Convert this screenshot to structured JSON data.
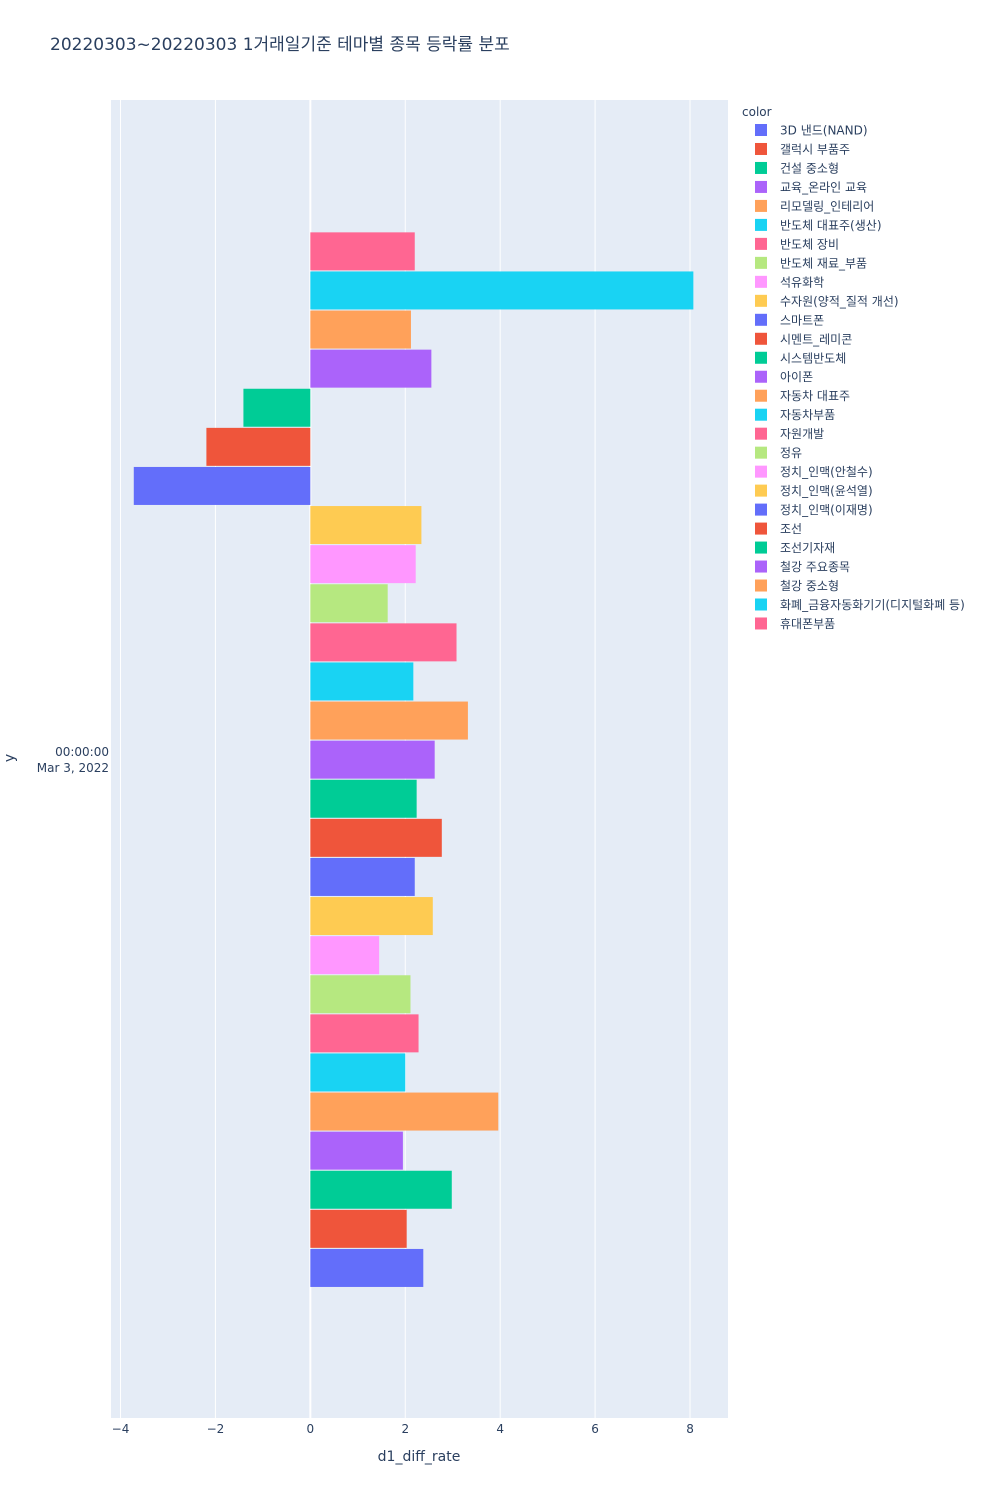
{
  "chart_data": {
    "type": "bar",
    "orientation": "horizontal",
    "title": "20220303~20220303 1거래일기준 테마별 종목 등락률 분포",
    "xlabel": "d1_diff_rate",
    "ylabel": "y",
    "y_category": [
      "00:00:00",
      "Mar 3, 2022"
    ],
    "xlim": [
      -4.2,
      8.8
    ],
    "xticks": [
      -4,
      -2,
      0,
      2,
      4,
      6,
      8
    ],
    "legend_title": "color",
    "legend_position": "right",
    "series": [
      {
        "name": "3D 낸드(NAND)",
        "value": 2.38,
        "color": "#636efa"
      },
      {
        "name": "갤럭시 부품주",
        "value": 2.03,
        "color": "#EF553B"
      },
      {
        "name": "건설 중소형",
        "value": 2.98,
        "color": "#00cc96"
      },
      {
        "name": "교육_온라인 교육",
        "value": 1.95,
        "color": "#ab63fa"
      },
      {
        "name": "리모델링_인테리어",
        "value": 3.96,
        "color": "#FFA15A"
      },
      {
        "name": "반도체 대표주(생산)",
        "value": 2.0,
        "color": "#19d3f3"
      },
      {
        "name": "반도체 장비",
        "value": 2.28,
        "color": "#FF6692"
      },
      {
        "name": "반도체 재료_부품",
        "value": 2.11,
        "color": "#B6E880"
      },
      {
        "name": "석유화학",
        "value": 1.45,
        "color": "#FF97FF"
      },
      {
        "name": "수자원(양적_질적 개선)",
        "value": 2.58,
        "color": "#FECB52"
      },
      {
        "name": "스마트폰",
        "value": 2.2,
        "color": "#636efa"
      },
      {
        "name": "시멘트_레미콘",
        "value": 2.77,
        "color": "#EF553B"
      },
      {
        "name": "시스템반도체",
        "value": 2.24,
        "color": "#00cc96"
      },
      {
        "name": "아이폰",
        "value": 2.62,
        "color": "#ab63fa"
      },
      {
        "name": "자동차 대표주",
        "value": 3.32,
        "color": "#FFA15A"
      },
      {
        "name": "자동차부품",
        "value": 2.17,
        "color": "#19d3f3"
      },
      {
        "name": "자원개발",
        "value": 3.08,
        "color": "#FF6692"
      },
      {
        "name": "정유",
        "value": 1.63,
        "color": "#B6E880"
      },
      {
        "name": "정치_인맥(안철수)",
        "value": 2.22,
        "color": "#FF97FF"
      },
      {
        "name": "정치_인맥(윤석열)",
        "value": 2.34,
        "color": "#FECB52"
      },
      {
        "name": "정치_인맥(이재명)",
        "value": -3.72,
        "color": "#636efa"
      },
      {
        "name": "조선",
        "value": -2.19,
        "color": "#EF553B"
      },
      {
        "name": "조선기자재",
        "value": -1.41,
        "color": "#00cc96"
      },
      {
        "name": "철강 주요종목",
        "value": 2.55,
        "color": "#ab63fa"
      },
      {
        "name": "철강 중소형",
        "value": 2.12,
        "color": "#FFA15A"
      },
      {
        "name": "화폐_금융자동화기기(디지털화폐 등)",
        "value": 8.07,
        "color": "#19d3f3"
      },
      {
        "name": "휴대폰부품",
        "value": 2.2,
        "color": "#FF6692"
      }
    ]
  },
  "colors": {
    "plot_bg": "#E5ECF6",
    "grid": "#ffffff",
    "text": "#2a3f5f"
  }
}
